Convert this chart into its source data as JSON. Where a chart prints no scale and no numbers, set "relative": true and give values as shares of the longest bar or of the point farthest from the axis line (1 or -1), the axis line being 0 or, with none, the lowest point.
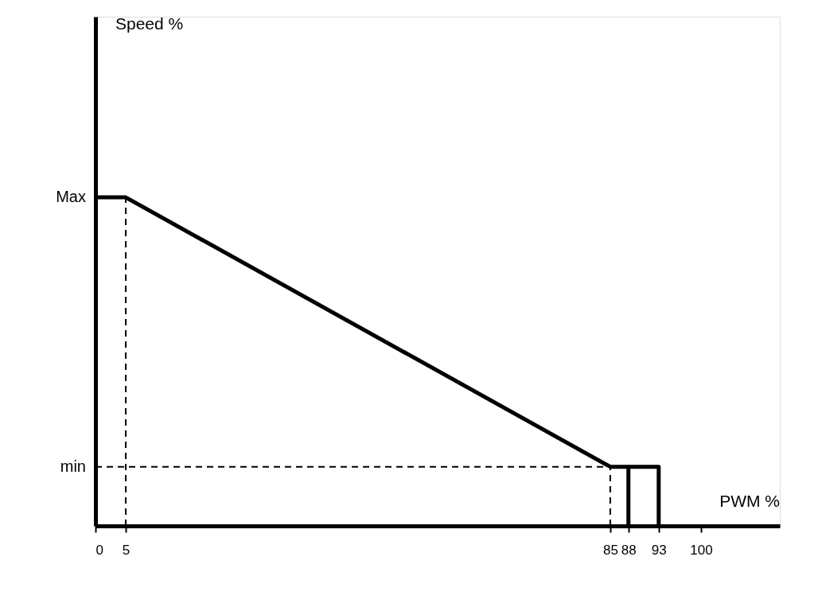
{
  "chart_data": {
    "type": "line",
    "xlabel": "PWM %",
    "relative": true,
    "x": [
      0,
      5,
      85,
      93,
      93
    ],
    "series": [
      {
        "color": "#000000",
        "values": [
          1,
          1,
          0.18,
          0.18,
          0
        ]
      },
      {
        "color": "#000000",
        "x": [
          88,
          88
        ],
        "values": [
          0,
          0.18
        ]
      }
    ],
    "xlim": [
      0,
      113
    ],
    "xticks": [
      0,
      5,
      85,
      88,
      93,
      100
    ],
    "annotations": [
      {
        "text": "Max",
        "x": 0,
        "y": 1
      },
      {
        "text": "min",
        "x": 0,
        "y": 0.18
      },
      "Speed %"
    ],
    "ref_lines": [
      {
        "axis": "x",
        "value": 5,
        "line_style": "dashed"
      },
      {
        "axis": "x",
        "value": 85,
        "line_style": "dashed"
      },
      {
        "axis": "y",
        "value": 0.18,
        "line_style": "dashed"
      }
    ],
    "tick_labels": "x",
    "grid": false,
    "line_style": "solid",
    "marker": "none"
  }
}
